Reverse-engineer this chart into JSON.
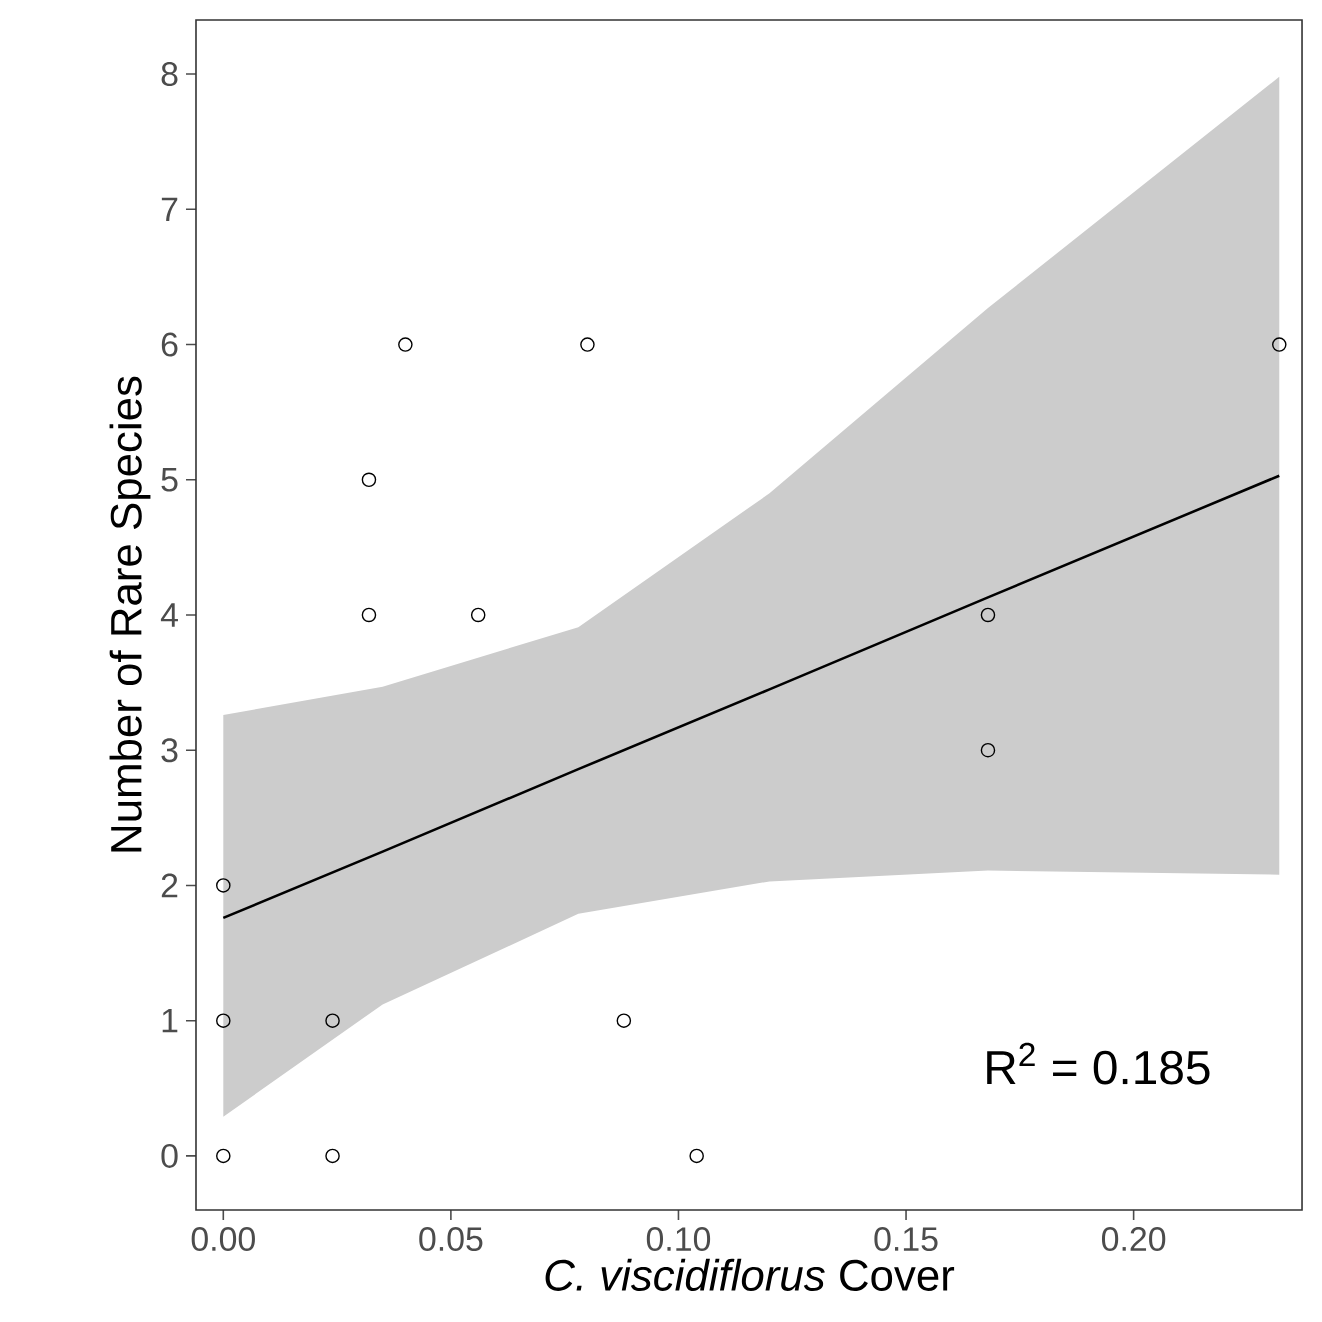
{
  "chart_data": {
    "type": "scatter",
    "xlabel": "*C. viscidiflorus* Cover",
    "ylabel": "Number of Rare Species",
    "annotations": [
      "R$^{2}$ = 0.185"
    ],
    "xlim": [
      -0.006,
      0.237
    ],
    "ylim": [
      -0.4,
      8.4
    ],
    "xticks": [
      {
        "value": 0,
        "label": "0.00"
      },
      {
        "value": 0.05,
        "label": "0.05"
      },
      {
        "value": 0.1,
        "label": "0.10"
      },
      {
        "value": 0.15,
        "label": "0.15"
      },
      {
        "value": 0.2,
        "label": "0.20"
      }
    ],
    "yticks": [
      0,
      1,
      2,
      3,
      4,
      5,
      6,
      7,
      8
    ],
    "grid": false,
    "series": [
      {
        "marker": "circle",
        "color": "#000000",
        "x": [
          0,
          0,
          0,
          0.024,
          0.024,
          0.032,
          0.032,
          0.04,
          0.056,
          0.08,
          0.088,
          0.104,
          0.168,
          0.168,
          0.232
        ],
        "values": [
          0,
          1,
          2,
          0,
          1,
          4,
          5,
          6,
          4,
          6,
          1,
          0,
          3,
          4,
          6
        ]
      },
      {
        "type": "line",
        "marker": "none",
        "color": "#000000",
        "x": [
          0,
          0.035,
          0.078,
          0.12,
          0.168,
          0.232
        ],
        "values": [
          1.76,
          2.25,
          2.86,
          3.45,
          4.13,
          5.03
        ],
        "lower": [
          0.29,
          1.12,
          1.79,
          2.03,
          2.11,
          2.08
        ],
        "upper": [
          3.26,
          3.47,
          3.91,
          4.9,
          6.27,
          7.98
        ]
      }
    ]
  }
}
